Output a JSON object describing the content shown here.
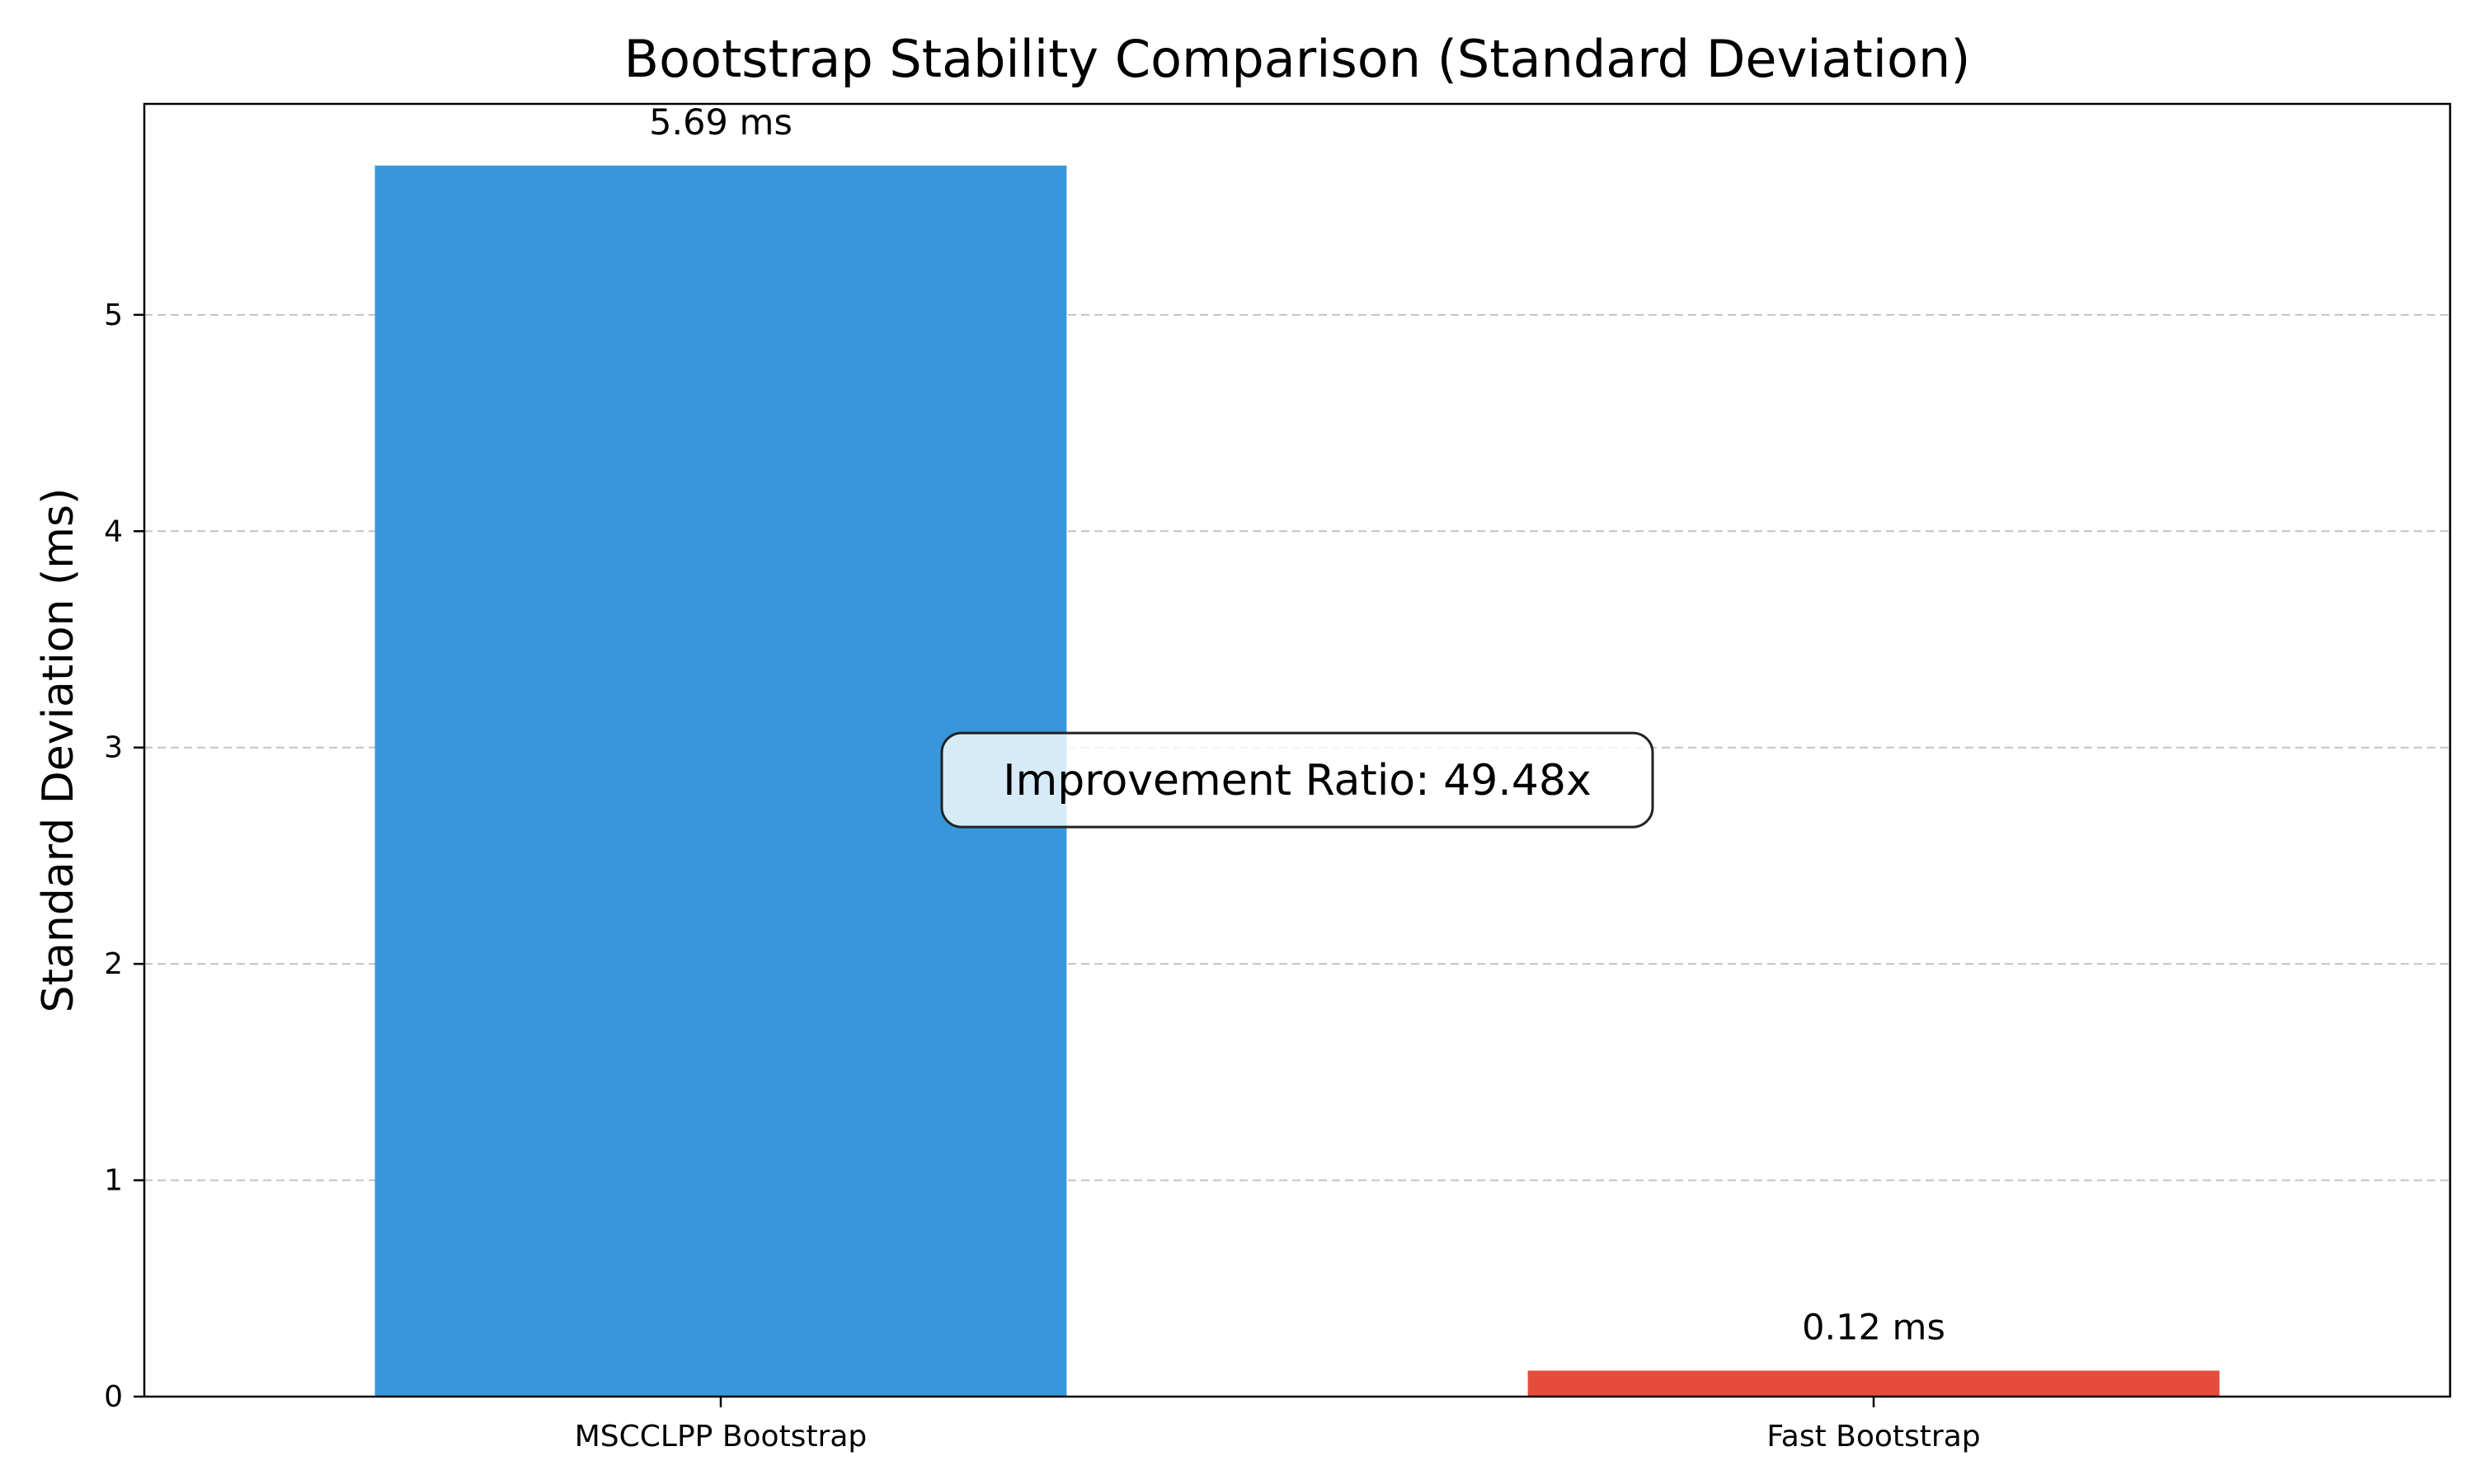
{
  "chart_data": {
    "type": "bar",
    "title": "Bootstrap Stability Comparison (Standard Deviation)",
    "xlabel": "",
    "ylabel": "Standard Deviation (ms)",
    "categories": [
      "MSCCLPP Bootstrap",
      "Fast Bootstrap"
    ],
    "values": [
      5.69,
      0.12
    ],
    "value_labels": [
      "5.69 ms",
      "0.12 ms"
    ],
    "colors": [
      "#3797da",
      "#e64c3c"
    ],
    "ylim": [
      0,
      5.975
    ],
    "yticks": [
      0,
      1,
      2,
      3,
      4,
      5
    ],
    "grid": "y-dashed",
    "annotation": {
      "text": "Improvement Ratio: 49.48x",
      "x_category": 0.5,
      "y": 2.85
    }
  }
}
